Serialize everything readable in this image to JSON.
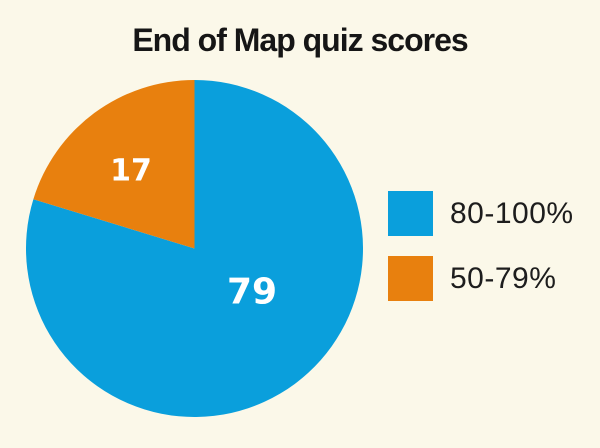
{
  "page": {
    "background": "#FBF8E9",
    "title_color": "#161616",
    "legend_text_color": "#1D1D1D"
  },
  "title": "End of Map quiz scores",
  "legend": {
    "position": "right",
    "items": [
      {
        "label": "80-100%",
        "color": "#0A9FDC"
      },
      {
        "label": "50-79%",
        "color": "#E8800E"
      }
    ]
  },
  "chart_data": {
    "type": "pie",
    "title": "End of Map quiz scores",
    "slices": [
      {
        "label": "80-100%",
        "value": 79,
        "color": "#0A9FDC",
        "sweep_deg": 287
      },
      {
        "label": "50-79%",
        "value": 17,
        "color": "#E8800E",
        "sweep_deg": 73
      }
    ],
    "start_angle_deg": 0,
    "direction": "clockwise",
    "value_label_color": "#FFFFFF",
    "legend_position": "right",
    "background": "#FBF8E9"
  }
}
